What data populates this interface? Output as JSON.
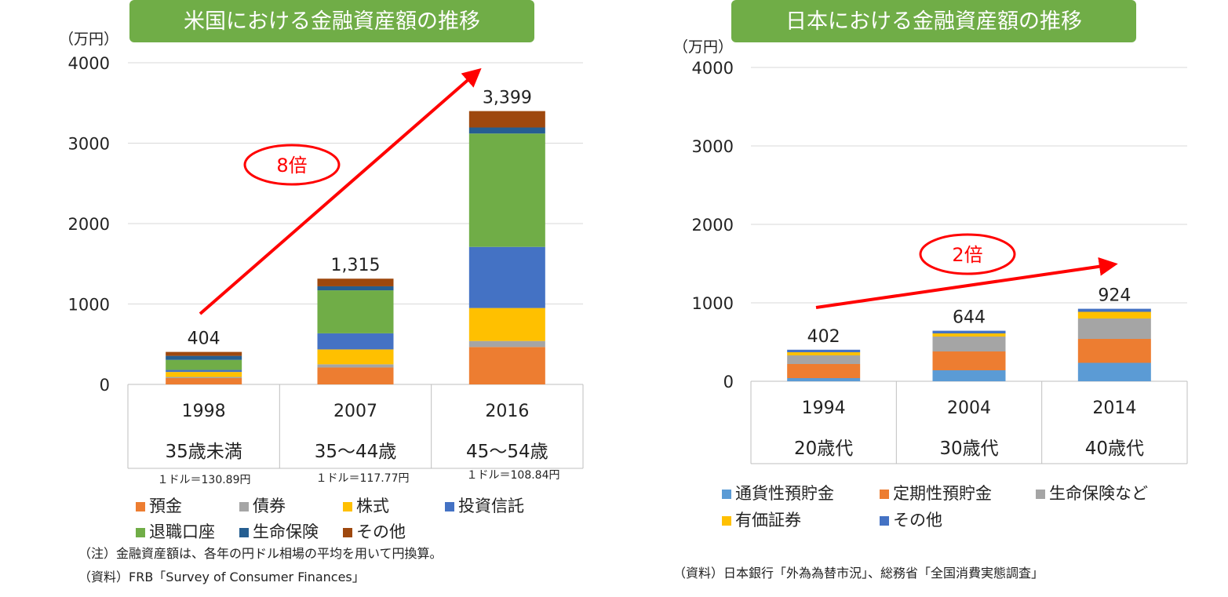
{
  "colors": {
    "title_bg": "#70ad47",
    "annotation_red": "#ff0000"
  },
  "us": {
    "title": "米国における金融資産額の推移",
    "unit": "（万円）",
    "multiplier": "8倍",
    "rates": [
      "１ドル＝130.89円",
      "１ドル＝117.77円",
      "１ドル＝108.84円"
    ],
    "notes": [
      "（注）金融資産額は、各年の円ドル相場の平均を用いて円換算。",
      "（資料）FRB「Survey of Consumer Finances」"
    ]
  },
  "jp": {
    "title": "日本における金融資産額の推移",
    "unit": "（万円）",
    "multiplier": "2倍",
    "notes": [
      "（資料）日本銀行「外為為替市況」、総務省「全国消費実態調査」"
    ]
  },
  "chart_data": [
    {
      "type": "bar",
      "stacked": true,
      "title": "米国における金融資産額の推移",
      "ylabel": "（万円）",
      "ylim": [
        0,
        4000
      ],
      "yticks": [
        "0",
        "1000",
        "2000",
        "3000",
        "4000"
      ],
      "categories": [
        "1998",
        "2007",
        "2016"
      ],
      "category_sublabels": [
        "35歳未満",
        "35～44歳",
        "45～54歳"
      ],
      "totals": [
        "404",
        "1,315",
        "3,399"
      ],
      "legend_position": "bottom",
      "series": [
        {
          "name": "預金",
          "color": "#ed7d31",
          "values": [
            78,
            210,
            465
          ]
        },
        {
          "name": "債券",
          "color": "#a5a5a5",
          "values": [
            15,
            40,
            75
          ]
        },
        {
          "name": "株式",
          "color": "#ffc000",
          "values": [
            62,
            185,
            410
          ]
        },
        {
          "name": "投資信託",
          "color": "#4472c4",
          "values": [
            25,
            200,
            760
          ]
        },
        {
          "name": "退職口座",
          "color": "#70ad47",
          "values": [
            125,
            535,
            1410
          ]
        },
        {
          "name": "生命保険",
          "color": "#255e91",
          "values": [
            50,
            50,
            75
          ]
        },
        {
          "name": "その他",
          "color": "#9e480e",
          "values": [
            49,
            95,
            204
          ]
        }
      ]
    },
    {
      "type": "bar",
      "stacked": true,
      "title": "日本における金融資産額の推移",
      "ylabel": "（万円）",
      "ylim": [
        0,
        4000
      ],
      "yticks": [
        "0",
        "1000",
        "2000",
        "3000",
        "4000"
      ],
      "categories": [
        "1994",
        "2004",
        "2014"
      ],
      "category_sublabels": [
        "20歳代",
        "30歳代",
        "40歳代"
      ],
      "totals": [
        "402",
        "644",
        "924"
      ],
      "legend_position": "bottom",
      "series": [
        {
          "name": "通貨性預貯金",
          "color": "#5b9bd5",
          "values": [
            40,
            140,
            235
          ]
        },
        {
          "name": "定期性預貯金",
          "color": "#ed7d31",
          "values": [
            180,
            240,
            305
          ]
        },
        {
          "name": "生命保険など",
          "color": "#a5a5a5",
          "values": [
            110,
            190,
            260
          ]
        },
        {
          "name": "有価証券",
          "color": "#ffc000",
          "values": [
            40,
            40,
            85
          ]
        },
        {
          "name": "その他",
          "color": "#4472c4",
          "values": [
            32,
            34,
            39
          ]
        }
      ]
    }
  ]
}
